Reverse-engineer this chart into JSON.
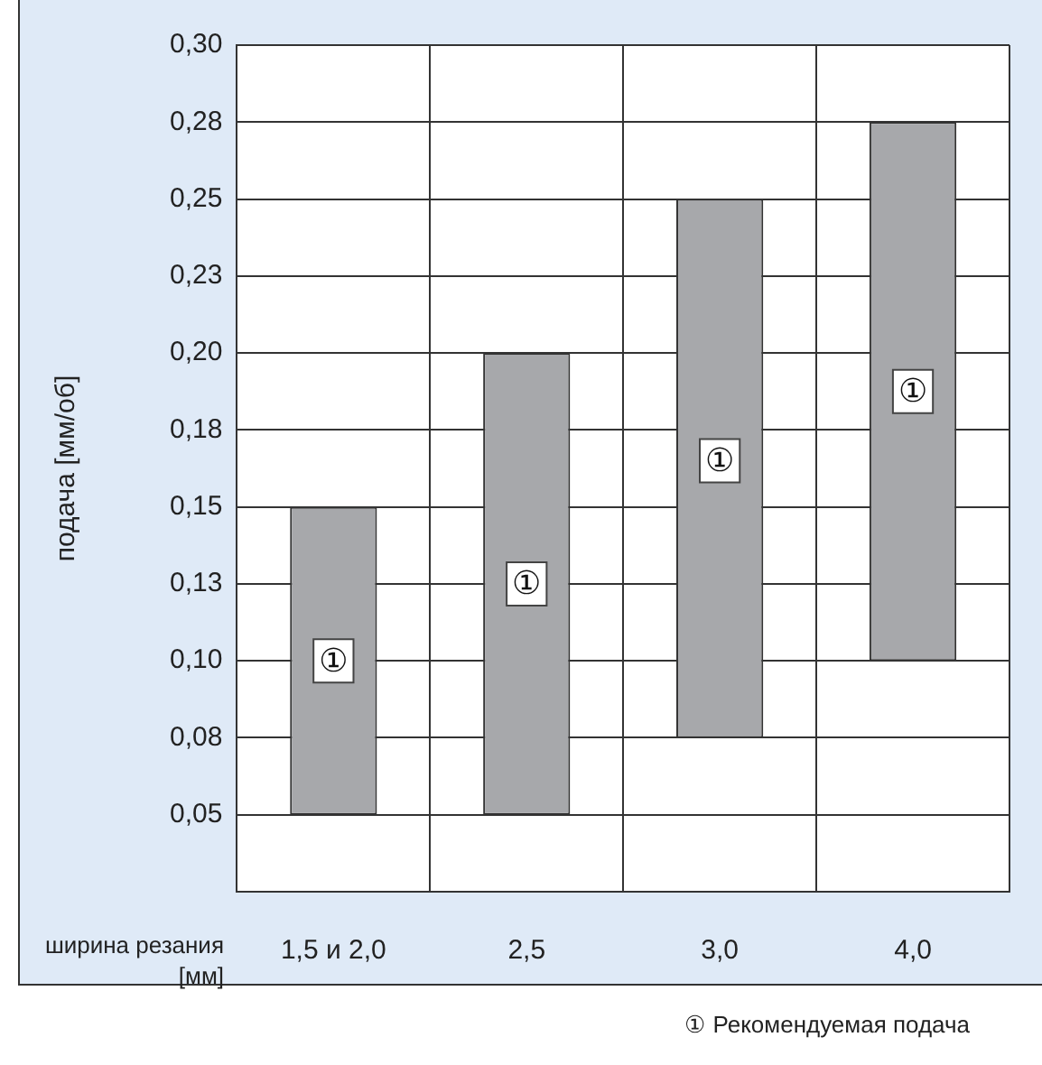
{
  "chart_data": {
    "type": "bar",
    "ylabel": "подача [мм/об]",
    "xlabel": "ширина резания [мм]",
    "categories": [
      "1,5 и 2,0",
      "2,5",
      "3,0",
      "4,0"
    ],
    "base": [
      0.05,
      0.05,
      0.075,
      0.1
    ],
    "values": [
      0.1,
      0.15,
      0.175,
      0.175
    ],
    "color": "#a7a8ab",
    "ylim": [
      0.025,
      0.3
    ],
    "yticks": [
      {
        "value": 0.05,
        "label": "0,05"
      },
      {
        "value": 0.075,
        "label": "0,08"
      },
      {
        "value": 0.1,
        "label": "0,10"
      },
      {
        "value": 0.125,
        "label": "0,13"
      },
      {
        "value": 0.15,
        "label": "0,15"
      },
      {
        "value": 0.175,
        "label": "0,18"
      },
      {
        "value": 0.2,
        "label": "0,20"
      },
      {
        "value": 0.225,
        "label": "0,23"
      },
      {
        "value": 0.25,
        "label": "0,25"
      },
      {
        "value": 0.275,
        "label": "0,28"
      },
      {
        "value": 0.3,
        "label": "0,30"
      }
    ],
    "grid": true,
    "annotations": [
      {
        "text": "①",
        "x": "1,5 и 2,0",
        "y": 0.1
      },
      {
        "text": "①",
        "x": "2,5",
        "y": 0.125
      },
      {
        "text": "①",
        "x": "3,0",
        "y": 0.165
      },
      {
        "text": "①",
        "x": "4,0",
        "y": 0.1875
      },
      "① Рекомендуемая подача"
    ]
  }
}
